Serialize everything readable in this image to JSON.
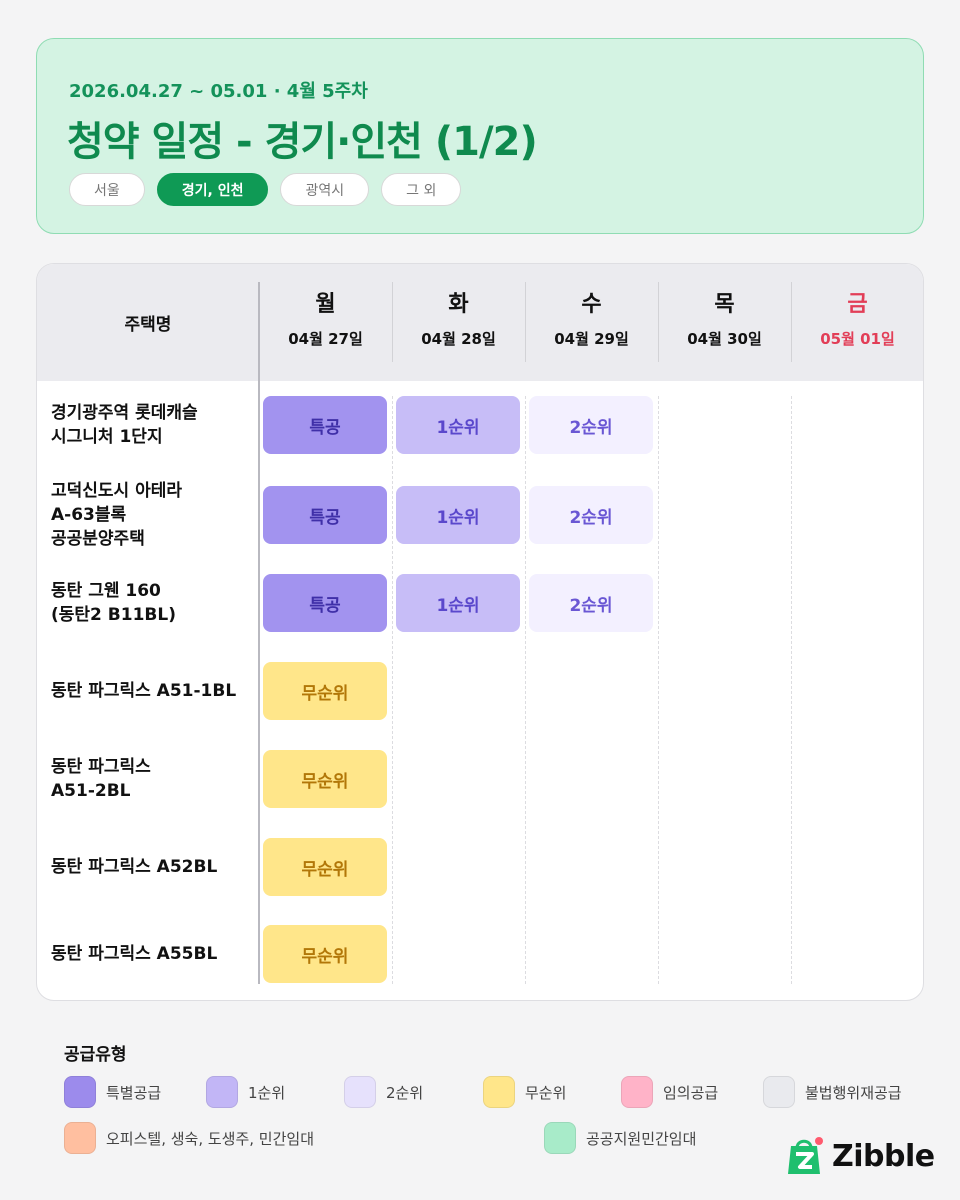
{
  "header": {
    "date_range": "2026.04.27 ~ 05.01 · 4월 5주차",
    "title": "청약 일정 - 경기·인천 (1/2)",
    "regions": [
      "서울",
      "경기, 인천",
      "광역시",
      "그 외"
    ],
    "active_region": "경기, 인천",
    "accent_color": "#0f9a55"
  },
  "table": {
    "name_header": "주택명",
    "days": [
      {
        "day": "월",
        "date": "04월 27일"
      },
      {
        "day": "화",
        "date": "04월 28일"
      },
      {
        "day": "수",
        "date": "04월 29일"
      },
      {
        "day": "목",
        "date": "04월 30일"
      },
      {
        "day": "금",
        "date": "05월 01일",
        "holiday": true
      }
    ],
    "rows": [
      {
        "name": "경기광주역 롯데캐슬\n시그니처 1단지",
        "events": [
          {
            "day": 0,
            "label": "특공",
            "type": "special"
          },
          {
            "day": 1,
            "label": "1순위",
            "type": "first"
          },
          {
            "day": 2,
            "label": "2순위",
            "type": "second"
          }
        ]
      },
      {
        "name": "고덕신도시 아테라\nA-63블록\n공공분양주택",
        "events": [
          {
            "day": 0,
            "label": "특공",
            "type": "special"
          },
          {
            "day": 1,
            "label": "1순위",
            "type": "first"
          },
          {
            "day": 2,
            "label": "2순위",
            "type": "second"
          }
        ]
      },
      {
        "name": "동탄 그웬 160\n(동탄2 B11BL)",
        "events": [
          {
            "day": 0,
            "label": "특공",
            "type": "special"
          },
          {
            "day": 1,
            "label": "1순위",
            "type": "first"
          },
          {
            "day": 2,
            "label": "2순위",
            "type": "second"
          }
        ]
      },
      {
        "name": "동탄 파그릭스 A51-1BL",
        "events": [
          {
            "day": 0,
            "label": "무순위",
            "type": "none"
          }
        ]
      },
      {
        "name": "동탄 파그릭스\nA51-2BL",
        "events": [
          {
            "day": 0,
            "label": "무순위",
            "type": "none"
          }
        ]
      },
      {
        "name": "동탄 파그릭스 A52BL",
        "events": [
          {
            "day": 0,
            "label": "무순위",
            "type": "none"
          }
        ]
      },
      {
        "name": "동탄 파그릭스 A55BL",
        "events": [
          {
            "day": 0,
            "label": "무순위",
            "type": "none"
          }
        ]
      }
    ]
  },
  "legend": {
    "title": "공급유형",
    "items": [
      {
        "label": "특별공급",
        "color": "#9c8bec"
      },
      {
        "label": "1순위",
        "color": "#c2b6f6"
      },
      {
        "label": "2순위",
        "color": "#e6e1fc"
      },
      {
        "label": "무순위",
        "color": "#ffe68a"
      },
      {
        "label": "임의공급",
        "color": "#ffb3c8"
      },
      {
        "label": "불법행위재공급",
        "color": "#e9eaee"
      },
      {
        "label": "오피스텔, 생숙, 도생주, 민간임대",
        "color": "#ffbfa0"
      },
      {
        "label": "공공지원민간임대",
        "color": "#a8ebc9"
      }
    ]
  },
  "brand": {
    "name": "Zibble",
    "color": "#1fbf6e"
  }
}
